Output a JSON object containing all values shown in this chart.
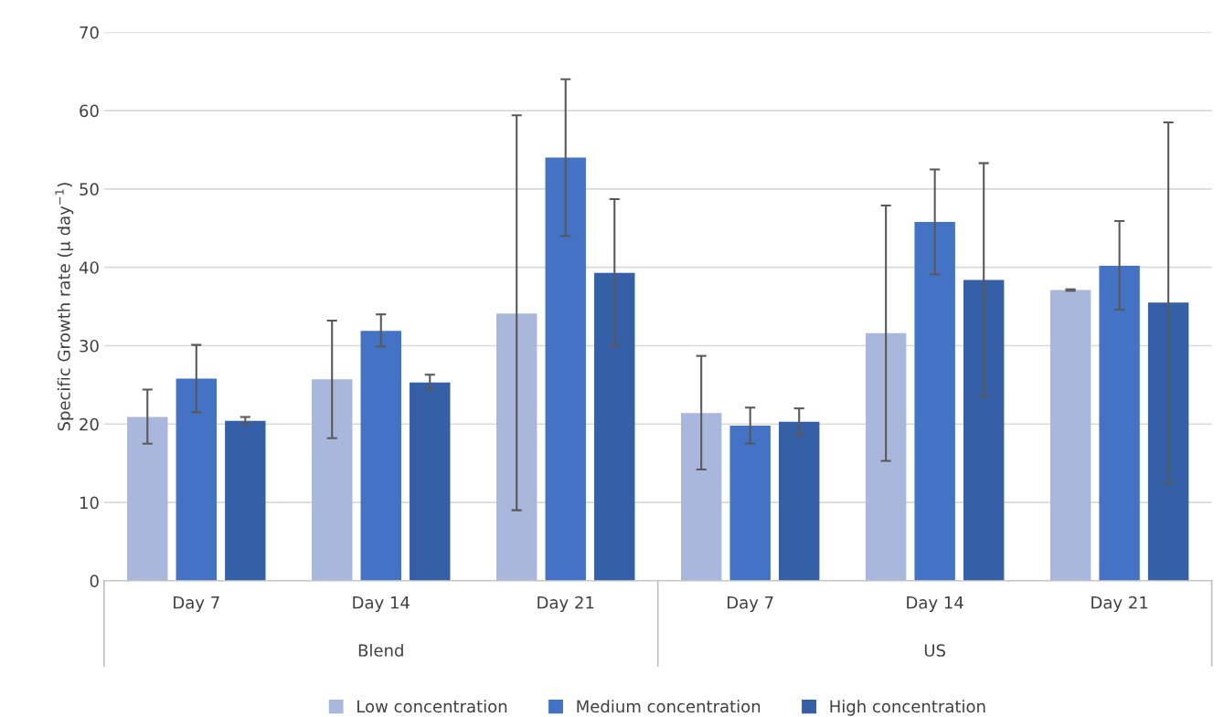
{
  "chart_data": {
    "type": "bar",
    "ylabel": "Specific Growth rate (μ day$^{−1}$)",
    "categories": [
      "Day 7",
      "Day 14",
      "Day 21",
      "Day 7",
      "Day 14",
      "Day 21"
    ],
    "annotations": [
      "Blend",
      "US"
    ],
    "series": [
      {
        "name": "Low concentration",
        "color": "#a9b7dc",
        "values": [
          20.9,
          25.7,
          34.1,
          21.4,
          31.6,
          37.1
        ],
        "errors": [
          [
            17.5,
            24.4
          ],
          [
            18.2,
            33.2
          ],
          [
            9.0,
            59.4
          ],
          [
            14.2,
            28.7
          ],
          [
            15.3,
            47.9
          ],
          [
            37.0,
            37.2
          ]
        ]
      },
      {
        "name": "Medium concentration",
        "color": "#4472c4",
        "values": [
          25.8,
          31.9,
          54.0,
          19.8,
          45.8,
          40.2
        ],
        "errors": [
          [
            21.5,
            30.1
          ],
          [
            29.9,
            34.0
          ],
          [
            44.0,
            64.0
          ],
          [
            17.5,
            22.1
          ],
          [
            39.1,
            52.5
          ],
          [
            34.6,
            45.9
          ]
        ]
      },
      {
        "name": "High concentration",
        "color": "#355fa6",
        "values": [
          20.4,
          25.3,
          39.3,
          20.3,
          38.4,
          35.5
        ],
        "errors": [
          [
            20.0,
            20.9
          ],
          [
            24.4,
            26.3
          ],
          [
            30.0,
            48.7
          ],
          [
            18.6,
            22.0
          ],
          [
            23.5,
            53.3
          ],
          [
            12.5,
            58.5
          ]
        ]
      }
    ],
    "ylim": [
      0,
      70
    ],
    "yticks": [
      0,
      10,
      20,
      30,
      40,
      50,
      60,
      70
    ],
    "grid": "y",
    "legend": "bottom"
  }
}
